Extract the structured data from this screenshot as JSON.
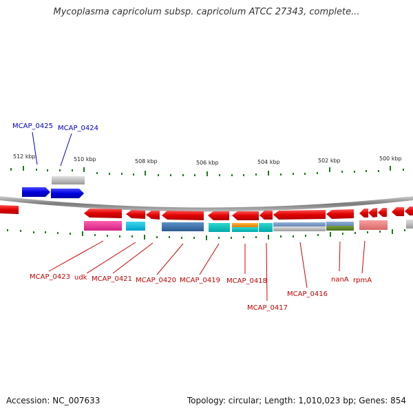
{
  "title": "Mycoplasma capricolum subsp. capricolum ATCC 27343, complete...",
  "footer": {
    "accession": "Accession: NC_007633",
    "stats": "Topology: circular; Length: 1,010,023 bp; Genes: 854"
  },
  "colors": {
    "forward_strand": "#1010e0",
    "reverse_strand": "#e01010",
    "backbone": "#888888",
    "tick": "#1a7a1a",
    "pseudo": "#aaaaaa"
  },
  "ruler": {
    "labels": [
      "512 kbp",
      "510 kbp",
      "508 kbp",
      "506 kbp",
      "504 kbp",
      "502 kbp",
      "500 kbp"
    ]
  },
  "forward_genes": [
    {
      "name": "MCAP_0425",
      "color": "blue"
    },
    {
      "name": "MCAP_0424",
      "color": "blue"
    }
  ],
  "reverse_genes": [
    {
      "name": "MCAP_0423"
    },
    {
      "name": "udk"
    },
    {
      "name": "MCAP_0421"
    },
    {
      "name": "MCAP_0420"
    },
    {
      "name": "MCAP_0419"
    },
    {
      "name": "MCAP_0418"
    },
    {
      "name": "MCAP_0417"
    },
    {
      "name": "MCAP_0416"
    },
    {
      "name": "nanA"
    },
    {
      "name": "rpmA"
    }
  ]
}
